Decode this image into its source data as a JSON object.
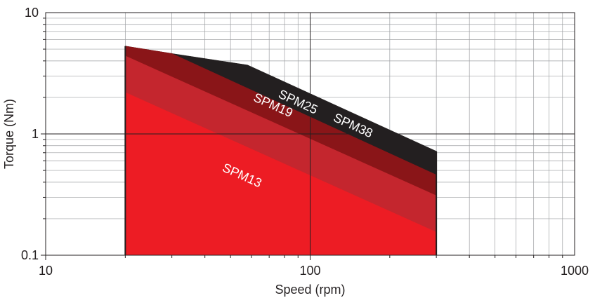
{
  "chart_data": {
    "type": "area",
    "xlabel": "Speed (rpm)",
    "ylabel": "Torque (Nm)",
    "xscale": "log",
    "yscale": "log",
    "xlim": [
      10,
      1000
    ],
    "ylim": [
      0.1,
      10
    ],
    "grid": true,
    "x_ticks": [
      "10",
      "100",
      "1000"
    ],
    "y_ticks": [
      "0.1",
      "1",
      "10"
    ],
    "series": [
      {
        "name": "SPM38",
        "color": "#231f20",
        "label_color": "#ffffff",
        "points": [
          [
            20,
            5.3
          ],
          [
            30,
            4.6
          ],
          [
            58,
            3.7
          ],
          [
            300,
            0.72
          ]
        ]
      },
      {
        "name": "SPM25",
        "color": "#8a1518",
        "label_color": "#ffffff",
        "points": [
          [
            20,
            5.3
          ],
          [
            30,
            4.6
          ],
          [
            300,
            0.46
          ]
        ]
      },
      {
        "name": "SPM19",
        "color": "#c4262e",
        "label_color": "#ffffff",
        "points": [
          [
            20,
            4.4
          ],
          [
            300,
            0.31
          ]
        ]
      },
      {
        "name": "SPM13",
        "color": "#ed1c24",
        "label_color": "#ffffff",
        "points": [
          [
            20,
            2.2
          ],
          [
            300,
            0.155
          ]
        ]
      }
    ]
  }
}
